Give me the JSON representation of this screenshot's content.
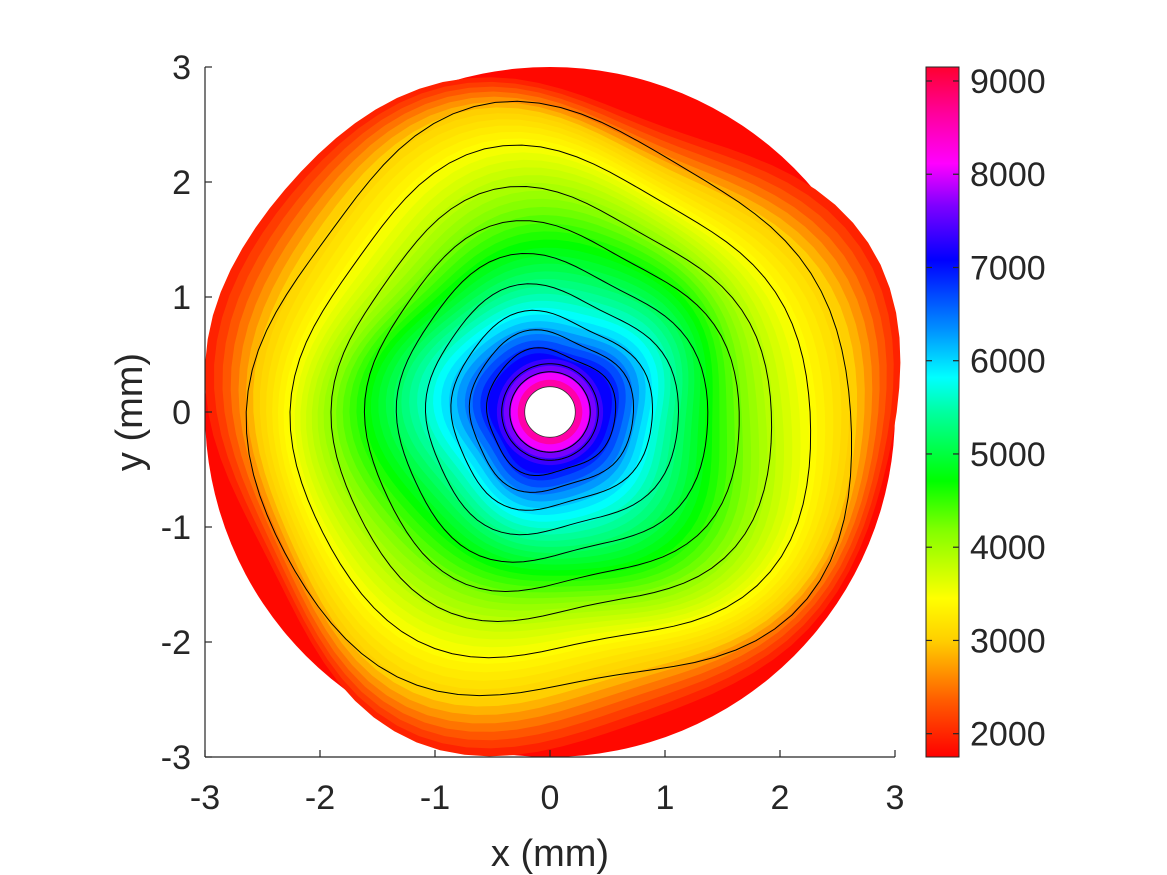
{
  "chart_data": {
    "type": "heatmap",
    "subtype": "filled-contour-annulus",
    "title": "",
    "xlabel": "x (mm)",
    "ylabel": "y (mm)",
    "xlim": [
      -3,
      3
    ],
    "ylim": [
      -3,
      3
    ],
    "x_ticks": [
      -3,
      -2,
      -1,
      0,
      1,
      2,
      3
    ],
    "y_ticks": [
      -3,
      -2,
      -1,
      0,
      1,
      2,
      3
    ],
    "x_tick_labels": [
      "-3",
      "-2",
      "-1",
      "0",
      "1",
      "2",
      "3"
    ],
    "y_tick_labels": [
      "-3",
      "-2",
      "-1",
      "0",
      "1",
      "2",
      "3"
    ],
    "colorbar": {
      "range": [
        1750,
        9150
      ],
      "ticks": [
        2000,
        3000,
        4000,
        5000,
        6000,
        7000,
        8000,
        9000
      ],
      "tick_labels": [
        "2000",
        "3000",
        "4000",
        "5000",
        "6000",
        "7000",
        "8000",
        "9000"
      ],
      "colormap": "hsv",
      "placement": "right"
    },
    "domain": {
      "center": [
        0,
        0
      ],
      "outer_radius": 3.0,
      "inner_hole_radius": 0.22
    },
    "field_value_at_inner_edge": 9100,
    "field_value_at_outer_edge": 1800,
    "contour_lines": [
      {
        "value": 8000,
        "radius": 0.35
      },
      {
        "value": 7500,
        "radius": 0.42
      },
      {
        "value": 7000,
        "radius": 0.55
      },
      {
        "value": 6500,
        "radius": 0.7
      },
      {
        "value": 6000,
        "radius": 0.86
      },
      {
        "value": 5500,
        "radius": 1.08
      },
      {
        "value": 5000,
        "radius": 1.33
      },
      {
        "value": 4500,
        "radius": 1.6
      },
      {
        "value": 4000,
        "radius": 1.88
      },
      {
        "value": 3500,
        "radius": 2.22
      },
      {
        "value": 3000,
        "radius": 2.58
      }
    ],
    "grid": false
  }
}
